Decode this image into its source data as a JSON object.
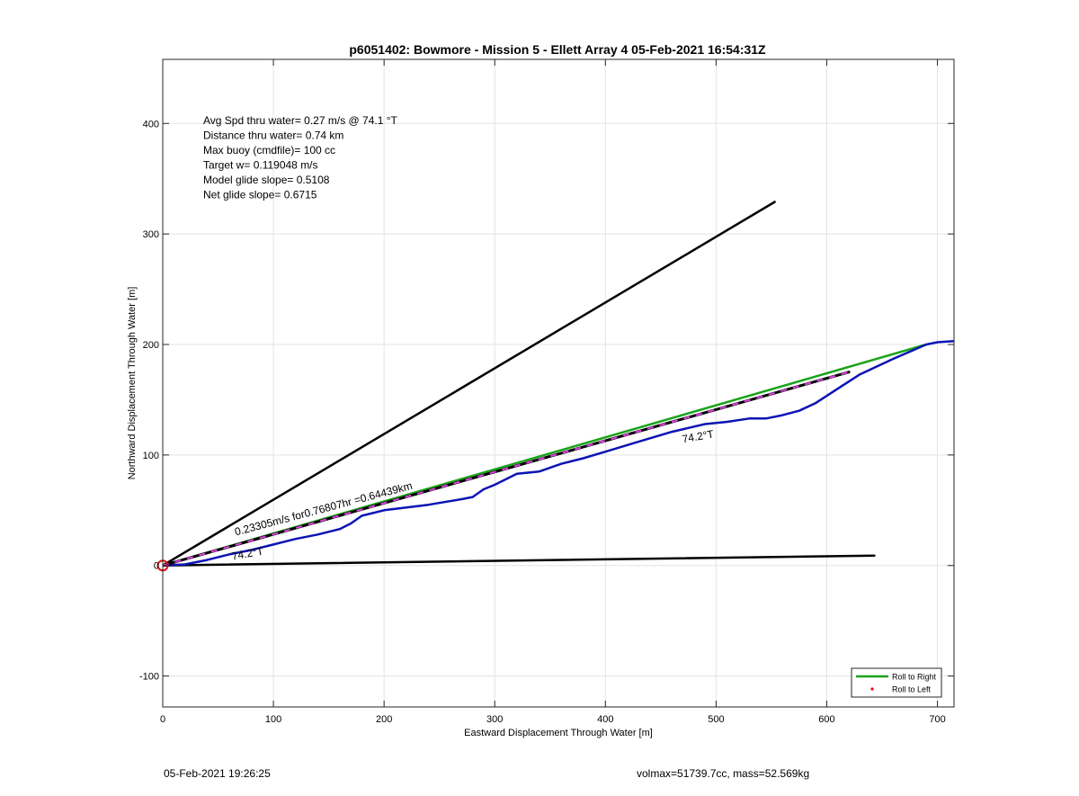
{
  "chart_data": {
    "type": "line",
    "title": "p6051402: Bowmore - Mission 5 - Ellett Array 4 05-Feb-2021 16:54:31Z",
    "xlabel": "Eastward Displacement Through Water [m]",
    "ylabel": "Northward Displacement Through Water [m]",
    "xlim": [
      0,
      715
    ],
    "ylim": [
      -128,
      458
    ],
    "xticks": [
      0,
      100,
      200,
      300,
      400,
      500,
      600,
      700
    ],
    "yticks": [
      -100,
      0,
      100,
      200,
      300,
      400
    ],
    "grid": true,
    "legend_position": "bottom-right",
    "legend": [
      {
        "label": "Roll to Right",
        "color": "#1aa31a",
        "style": "line"
      },
      {
        "label": "Roll to Left",
        "color": "#ff0000",
        "style": "dot"
      }
    ],
    "info_lines": [
      "Avg Spd thru water=  0.27 m/s @  74.1 °T",
      "Distance thru water=  0.74 km",
      "Max buoy (cmdfile)= 100 cc",
      "Target w= 0.119048 m/s",
      "Model glide slope= 0.5108",
      "Net glide slope= 0.6715"
    ],
    "annotations": [
      {
        "text": "0.23305m/s for0.76807hr =0.64439km",
        "x": 66,
        "y": 27,
        "angle": -14.8
      },
      {
        "text": "74.2°T",
        "x": 470,
        "y": 111,
        "angle": -10
      },
      {
        "text": "74.2°T",
        "x": 63,
        "y": 5,
        "angle": -10
      }
    ],
    "series": [
      {
        "role": "heading_upper",
        "color": "#000000",
        "width": 2.5,
        "dash": "",
        "x": [
          0,
          553
        ],
        "y": [
          0,
          329
        ]
      },
      {
        "role": "heading_lower",
        "color": "#000000",
        "width": 2.5,
        "dash": "",
        "x": [
          0,
          643
        ],
        "y": [
          0,
          9
        ]
      },
      {
        "role": "roll_to_right",
        "color": "#1aa31a",
        "width": 2.5,
        "dash": "",
        "x": [
          0,
          690
        ],
        "y": [
          0,
          200
        ]
      },
      {
        "role": "track",
        "color": "#0a14b4",
        "width": 2.5,
        "dash": "",
        "x": [
          0,
          20,
          40,
          60,
          80,
          100,
          120,
          140,
          160,
          170,
          180,
          200,
          240,
          270,
          280,
          290,
          300,
          320,
          340,
          360,
          380,
          400,
          430,
          460,
          490,
          510,
          530,
          545,
          560,
          575,
          590,
          610,
          630,
          660,
          690,
          700,
          715
        ],
        "y": [
          0,
          1,
          5,
          10,
          14,
          19,
          24,
          28,
          33,
          38,
          45,
          50,
          55,
          60,
          62,
          69,
          73,
          83,
          85,
          92,
          97,
          103,
          112,
          121,
          128,
          130,
          133,
          133,
          136,
          140,
          147,
          160,
          173,
          187,
          200,
          202,
          203
        ]
      },
      {
        "role": "current_vector",
        "color": "#000000",
        "width": 3,
        "dash": "",
        "x": [
          0,
          620
        ],
        "y": [
          0,
          175
        ]
      },
      {
        "role": "current_vector_overlay",
        "color": "#e040e0",
        "width": 2,
        "dash": "7,7",
        "x": [
          0,
          620
        ],
        "y": [
          0,
          175
        ]
      }
    ],
    "marker": {
      "x": 0,
      "y": 0,
      "color": "#dd1111"
    }
  },
  "footer": {
    "timestamp": "05-Feb-2021 19:26:25",
    "stats": "volmax=51739.7cc, mass=52.569kg"
  }
}
